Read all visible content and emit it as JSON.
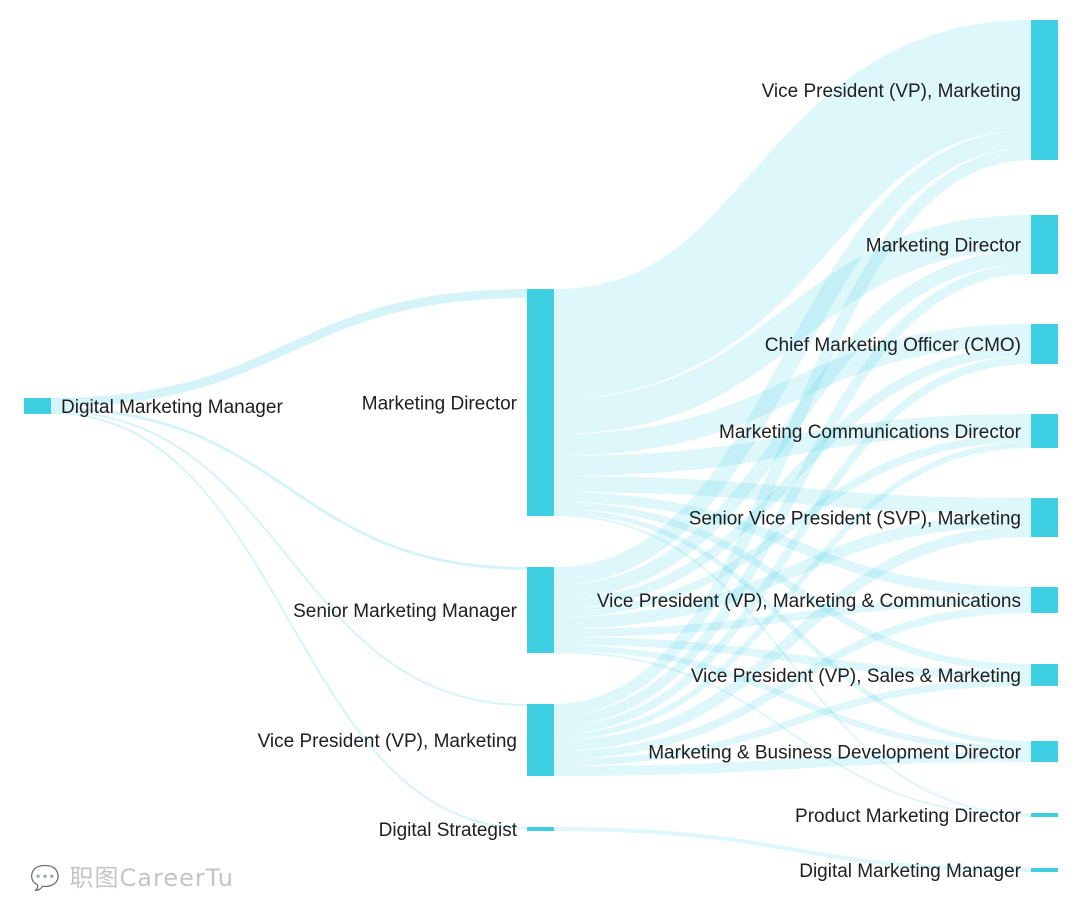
{
  "chart_data": {
    "type": "sankey",
    "node_color": "#3ecfe3",
    "link_color": "#3ecfe3",
    "nodes": [
      {
        "id": "c0_dmm",
        "label": "Digital Marketing Manager",
        "column": 0
      },
      {
        "id": "c1_md",
        "label": "Marketing Director",
        "column": 1
      },
      {
        "id": "c1_smm",
        "label": "Senior Marketing Manager",
        "column": 1
      },
      {
        "id": "c1_vp",
        "label": "Vice President (VP), Marketing",
        "column": 1
      },
      {
        "id": "c1_ds",
        "label": "Digital Strategist",
        "column": 1
      },
      {
        "id": "c2_vp",
        "label": "Vice President (VP), Marketing",
        "column": 2
      },
      {
        "id": "c2_md",
        "label": "Marketing Director",
        "column": 2
      },
      {
        "id": "c2_cmo",
        "label": "Chief Marketing Officer (CMO)",
        "column": 2
      },
      {
        "id": "c2_mcd",
        "label": "Marketing Communications Director",
        "column": 2
      },
      {
        "id": "c2_svp",
        "label": "Senior Vice President (SVP), Marketing",
        "column": 2
      },
      {
        "id": "c2_vpmc",
        "label": "Vice President (VP), Marketing & Communications",
        "column": 2
      },
      {
        "id": "c2_vpsm",
        "label": "Vice President (VP), Sales & Marketing",
        "column": 2
      },
      {
        "id": "c2_mbdd",
        "label": "Marketing & Business Development Director",
        "column": 2
      },
      {
        "id": "c2_pmd",
        "label": "Product Marketing Director",
        "column": 2
      },
      {
        "id": "c2_dmm",
        "label": "Digital Marketing Manager",
        "column": 2
      }
    ],
    "links": [
      {
        "source": "c0_dmm",
        "target": "c1_md",
        "value": 9
      },
      {
        "source": "c0_dmm",
        "target": "c1_smm",
        "value": 3
      },
      {
        "source": "c0_dmm",
        "target": "c1_vp",
        "value": 2
      },
      {
        "source": "c0_dmm",
        "target": "c1_ds",
        "value": 2
      },
      {
        "source": "c1_md",
        "target": "c2_vp",
        "value": 110
      },
      {
        "source": "c1_md",
        "target": "c2_md",
        "value": 35
      },
      {
        "source": "c1_md",
        "target": "c2_cmo",
        "value": 22
      },
      {
        "source": "c1_md",
        "target": "c2_mcd",
        "value": 20
      },
      {
        "source": "c1_md",
        "target": "c2_svp",
        "value": 16
      },
      {
        "source": "c1_md",
        "target": "c2_vpmc",
        "value": 10
      },
      {
        "source": "c1_md",
        "target": "c2_vpsm",
        "value": 7
      },
      {
        "source": "c1_md",
        "target": "c2_mbdd",
        "value": 5
      },
      {
        "source": "c1_md",
        "target": "c2_pmd",
        "value": 2
      },
      {
        "source": "c1_smm",
        "target": "c2_vp",
        "value": 18
      },
      {
        "source": "c1_smm",
        "target": "c2_md",
        "value": 14
      },
      {
        "source": "c1_smm",
        "target": "c2_cmo",
        "value": 10
      },
      {
        "source": "c1_smm",
        "target": "c2_mcd",
        "value": 8
      },
      {
        "source": "c1_smm",
        "target": "c2_svp",
        "value": 12
      },
      {
        "source": "c1_smm",
        "target": "c2_vpmc",
        "value": 8
      },
      {
        "source": "c1_smm",
        "target": "c2_vpsm",
        "value": 8
      },
      {
        "source": "c1_smm",
        "target": "c2_mbdd",
        "value": 6
      },
      {
        "source": "c1_smm",
        "target": "c2_pmd",
        "value": 2
      },
      {
        "source": "c1_vp",
        "target": "c2_vp",
        "value": 12
      },
      {
        "source": "c1_vp",
        "target": "c2_md",
        "value": 10
      },
      {
        "source": "c1_vp",
        "target": "c2_cmo",
        "value": 8
      },
      {
        "source": "c1_vp",
        "target": "c2_mcd",
        "value": 6
      },
      {
        "source": "c1_vp",
        "target": "c2_svp",
        "value": 11
      },
      {
        "source": "c1_vp",
        "target": "c2_vpmc",
        "value": 8
      },
      {
        "source": "c1_vp",
        "target": "c2_vpsm",
        "value": 7
      },
      {
        "source": "c1_vp",
        "target": "c2_mbdd",
        "value": 10
      },
      {
        "source": "c1_ds",
        "target": "c2_dmm",
        "value": 4
      }
    ]
  },
  "watermark": "职图CareerTu"
}
